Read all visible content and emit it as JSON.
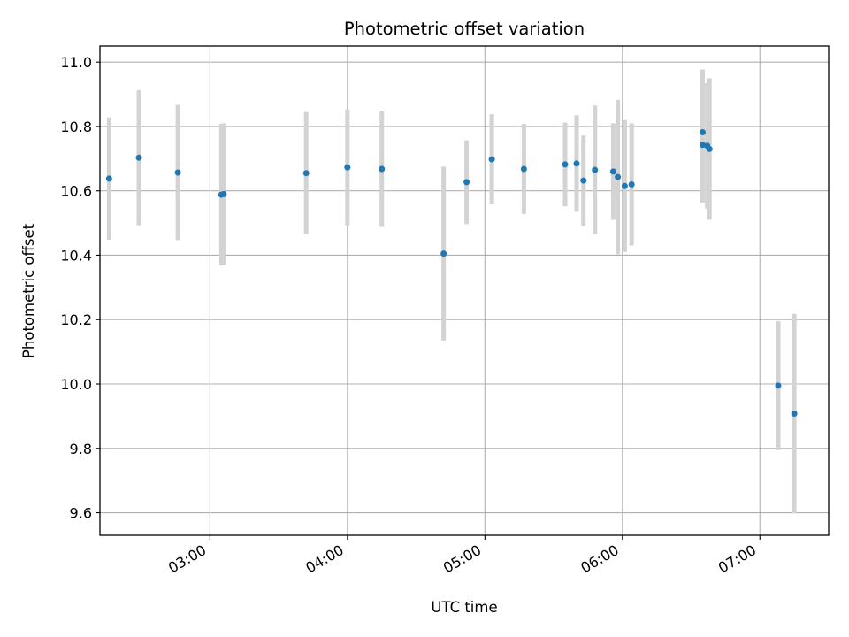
{
  "chart_data": {
    "type": "scatter",
    "title": "Photometric offset variation",
    "xlabel": "UTC time",
    "ylabel": "Photometric offset",
    "x_axis": {
      "type": "time",
      "min": "02:12",
      "max": "07:30",
      "ticks": [
        "03:00",
        "04:00",
        "05:00",
        "06:00",
        "07:00"
      ]
    },
    "y_axis": {
      "min": 9.53,
      "max": 11.05,
      "ticks": [
        "9.6",
        "9.8",
        "10.0",
        "10.2",
        "10.4",
        "10.6",
        "10.8",
        "11.0"
      ]
    },
    "grid": true,
    "marker_color": "#1f77b4",
    "errorbar_color": "#d3d3d3",
    "points": [
      {
        "x": "02:16",
        "y": 10.638,
        "err": 0.19
      },
      {
        "x": "02:29",
        "y": 10.703,
        "err": 0.21
      },
      {
        "x": "02:46",
        "y": 10.657,
        "err": 0.21
      },
      {
        "x": "03:05",
        "y": 10.588,
        "err": 0.22
      },
      {
        "x": "03:06",
        "y": 10.59,
        "err": 0.22
      },
      {
        "x": "03:42",
        "y": 10.655,
        "err": 0.19
      },
      {
        "x": "04:00",
        "y": 10.673,
        "err": 0.18
      },
      {
        "x": "04:15",
        "y": 10.668,
        "err": 0.18
      },
      {
        "x": "04:42",
        "y": 10.405,
        "err": 0.27
      },
      {
        "x": "04:52",
        "y": 10.627,
        "err": 0.13
      },
      {
        "x": "05:03",
        "y": 10.698,
        "err": 0.14
      },
      {
        "x": "05:17",
        "y": 10.668,
        "err": 0.14
      },
      {
        "x": "05:35",
        "y": 10.682,
        "err": 0.13
      },
      {
        "x": "05:40",
        "y": 10.685,
        "err": 0.15
      },
      {
        "x": "05:43",
        "y": 10.632,
        "err": 0.14
      },
      {
        "x": "05:48",
        "y": 10.665,
        "err": 0.2
      },
      {
        "x": "05:56",
        "y": 10.66,
        "err": 0.15
      },
      {
        "x": "05:58",
        "y": 10.643,
        "err": 0.24
      },
      {
        "x": "06:01",
        "y": 10.615,
        "err": 0.205
      },
      {
        "x": "06:04",
        "y": 10.62,
        "err": 0.19
      },
      {
        "x": "06:35",
        "y": 10.743,
        "err": 0.18
      },
      {
        "x": "06:35",
        "y": 10.782,
        "err": 0.195
      },
      {
        "x": "06:37",
        "y": 10.74,
        "err": 0.195
      },
      {
        "x": "06:38",
        "y": 10.73,
        "err": 0.22
      },
      {
        "x": "07:08",
        "y": 9.995,
        "err": 0.2
      },
      {
        "x": "07:15",
        "y": 9.908,
        "err": 0.31
      }
    ]
  }
}
